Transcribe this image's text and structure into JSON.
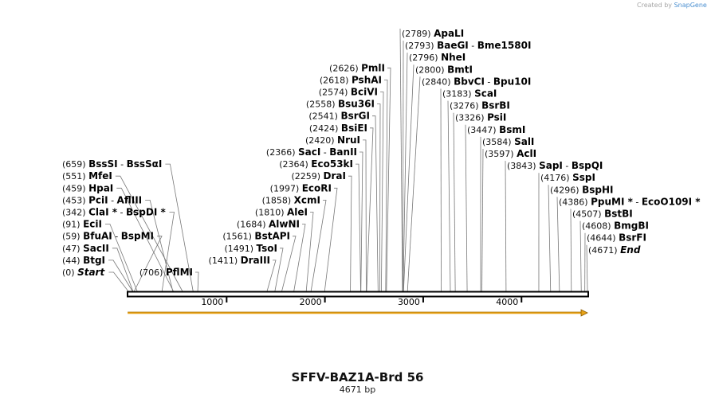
{
  "credit": {
    "prefix": "Created by",
    "brand": "SnapGene"
  },
  "map": {
    "title": "SFFV-BAZ1A-Brd 56",
    "length_label": "4671 bp",
    "length": 4671,
    "ticks": [
      {
        "pos": 1000,
        "label": "1000"
      },
      {
        "pos": 2000,
        "label": "2000"
      },
      {
        "pos": 3000,
        "label": "3000"
      },
      {
        "pos": 4000,
        "label": "4000"
      }
    ],
    "feature": {
      "name": "orange-feature-arrow",
      "color": "#e8a317",
      "start": 1,
      "end": 4671
    },
    "sites": [
      {
        "num": "(0)",
        "pos": 0,
        "parts": [
          {
            "t": "Start",
            "i": true
          }
        ]
      },
      {
        "num": "(44)",
        "pos": 44,
        "parts": [
          {
            "t": "BtgI"
          }
        ]
      },
      {
        "num": "(47)",
        "pos": 47,
        "parts": [
          {
            "t": "SacII"
          }
        ]
      },
      {
        "num": "(59)",
        "pos": 59,
        "parts": [
          {
            "t": "BfuAI"
          },
          {
            "t": "BspMI"
          }
        ]
      },
      {
        "num": "(91)",
        "pos": 91,
        "parts": [
          {
            "t": "EciI"
          }
        ]
      },
      {
        "num": "(342)",
        "pos": 342,
        "parts": [
          {
            "t": "ClaI *"
          },
          {
            "t": "BspDI *"
          }
        ]
      },
      {
        "num": "(453)",
        "pos": 453,
        "parts": [
          {
            "t": "PciI"
          },
          {
            "t": "AflIII"
          }
        ]
      },
      {
        "num": "(459)",
        "pos": 459,
        "parts": [
          {
            "t": "HpaI"
          }
        ]
      },
      {
        "num": "(551)",
        "pos": 551,
        "parts": [
          {
            "t": "MfeI"
          }
        ]
      },
      {
        "num": "(659)",
        "pos": 659,
        "parts": [
          {
            "t": "BssSI"
          },
          {
            "t": "BssSαI"
          }
        ]
      },
      {
        "num": "(706)",
        "pos": 706,
        "parts": [
          {
            "t": "PflMI"
          }
        ]
      },
      {
        "num": "(1411)",
        "pos": 1411,
        "parts": [
          {
            "t": "DraIII"
          }
        ]
      },
      {
        "num": "(1491)",
        "pos": 1491,
        "parts": [
          {
            "t": "TsoI"
          }
        ]
      },
      {
        "num": "(1561)",
        "pos": 1561,
        "parts": [
          {
            "t": "BstAPI"
          }
        ]
      },
      {
        "num": "(1684)",
        "pos": 1684,
        "parts": [
          {
            "t": "AlwNI"
          }
        ]
      },
      {
        "num": "(1810)",
        "pos": 1810,
        "parts": [
          {
            "t": "AleI"
          }
        ]
      },
      {
        "num": "(1858)",
        "pos": 1858,
        "parts": [
          {
            "t": "XcmI"
          }
        ]
      },
      {
        "num": "(1997)",
        "pos": 1997,
        "parts": [
          {
            "t": "EcoRI"
          }
        ]
      },
      {
        "num": "(2259)",
        "pos": 2259,
        "parts": [
          {
            "t": "DraI"
          }
        ]
      },
      {
        "num": "(2364)",
        "pos": 2364,
        "parts": [
          {
            "t": "Eco53kI"
          }
        ]
      },
      {
        "num": "(2366)",
        "pos": 2366,
        "parts": [
          {
            "t": "SacI"
          },
          {
            "t": "BanII"
          }
        ]
      },
      {
        "num": "(2420)",
        "pos": 2420,
        "parts": [
          {
            "t": "NruI"
          }
        ]
      },
      {
        "num": "(2424)",
        "pos": 2424,
        "parts": [
          {
            "t": "BsiEI"
          }
        ]
      },
      {
        "num": "(2541)",
        "pos": 2541,
        "parts": [
          {
            "t": "BsrGI"
          }
        ]
      },
      {
        "num": "(2558)",
        "pos": 2558,
        "parts": [
          {
            "t": "Bsu36I"
          }
        ]
      },
      {
        "num": "(2574)",
        "pos": 2574,
        "parts": [
          {
            "t": "BciVI"
          }
        ]
      },
      {
        "num": "(2618)",
        "pos": 2618,
        "parts": [
          {
            "t": "PshAI"
          }
        ]
      },
      {
        "num": "(2626)",
        "pos": 2626,
        "parts": [
          {
            "t": "PmlI"
          }
        ]
      },
      {
        "num": "(2789)",
        "pos": 2789,
        "parts": [
          {
            "t": "ApaLI"
          }
        ]
      },
      {
        "num": "(2793)",
        "pos": 2793,
        "parts": [
          {
            "t": "BaeGI"
          },
          {
            "t": "Bme1580I"
          }
        ]
      },
      {
        "num": "(2796)",
        "pos": 2796,
        "parts": [
          {
            "t": "NheI"
          }
        ]
      },
      {
        "num": "(2800)",
        "pos": 2800,
        "parts": [
          {
            "t": "BmtI"
          }
        ]
      },
      {
        "num": "(2840)",
        "pos": 2840,
        "parts": [
          {
            "t": "BbvCI"
          },
          {
            "t": "Bpu10I"
          }
        ]
      },
      {
        "num": "(3183)",
        "pos": 3183,
        "parts": [
          {
            "t": "ScaI"
          }
        ]
      },
      {
        "num": "(3276)",
        "pos": 3276,
        "parts": [
          {
            "t": "BsrBI"
          }
        ]
      },
      {
        "num": "(3326)",
        "pos": 3326,
        "parts": [
          {
            "t": "PsiI"
          }
        ]
      },
      {
        "num": "(3447)",
        "pos": 3447,
        "parts": [
          {
            "t": "BsmI"
          }
        ]
      },
      {
        "num": "(3584)",
        "pos": 3584,
        "parts": [
          {
            "t": "SalI"
          }
        ]
      },
      {
        "num": "(3597)",
        "pos": 3597,
        "parts": [
          {
            "t": "AclI"
          }
        ]
      },
      {
        "num": "(3843)",
        "pos": 3843,
        "parts": [
          {
            "t": "SapI"
          },
          {
            "t": "BspQI"
          }
        ]
      },
      {
        "num": "(4176)",
        "pos": 4176,
        "parts": [
          {
            "t": "SspI"
          }
        ]
      },
      {
        "num": "(4296)",
        "pos": 4296,
        "parts": [
          {
            "t": "BspHI"
          }
        ]
      },
      {
        "num": "(4386)",
        "pos": 4386,
        "parts": [
          {
            "t": "PpuMI *"
          },
          {
            "t": "EcoO109I *"
          }
        ]
      },
      {
        "num": "(4507)",
        "pos": 4507,
        "parts": [
          {
            "t": "BstBI"
          }
        ]
      },
      {
        "num": "(4608)",
        "pos": 4608,
        "parts": [
          {
            "t": "BmgBI"
          }
        ]
      },
      {
        "num": "(4644)",
        "pos": 4644,
        "parts": [
          {
            "t": "BsrFI"
          }
        ]
      },
      {
        "num": "(4671)",
        "pos": 4671,
        "parts": [
          {
            "t": "End",
            "i": true
          }
        ]
      }
    ]
  }
}
